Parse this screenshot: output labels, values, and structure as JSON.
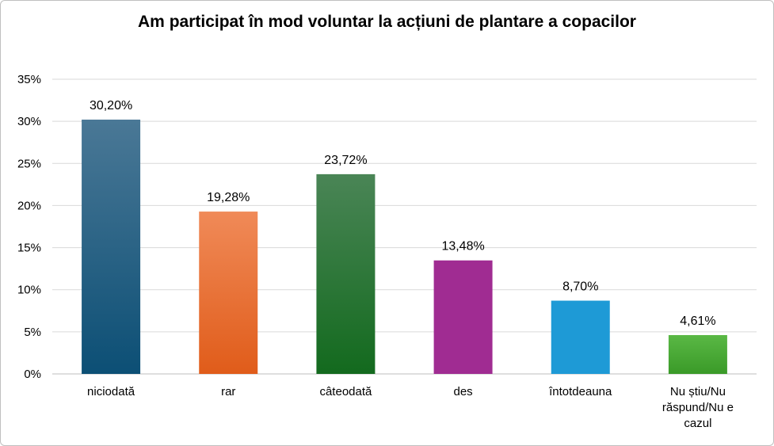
{
  "chart_data": {
    "type": "bar",
    "title": "Am participat în mod voluntar la acțiuni de plantare a copacilor",
    "xlabel": "",
    "ylabel": "",
    "ylim": [
      0,
      35
    ],
    "ytick_step": 5,
    "ytick_labels": [
      "0%",
      "5%",
      "10%",
      "15%",
      "20%",
      "25%",
      "30%",
      "35%"
    ],
    "grid": true,
    "legend": "none",
    "categories": [
      [
        "niciodată"
      ],
      [
        "rar"
      ],
      [
        "câteodată"
      ],
      [
        "des"
      ],
      [
        "întotdeauna"
      ],
      [
        "Nu știu/Nu",
        "răspund/Nu e",
        "cazul"
      ]
    ],
    "values": [
      30.2,
      19.28,
      23.72,
      13.48,
      8.7,
      4.61
    ],
    "value_labels": [
      "30,20%",
      "19,28%",
      "23,72%",
      "13,48%",
      "8,70%",
      "4,61%"
    ],
    "colors": [
      [
        "#4a7896",
        "#0c4f75"
      ],
      [
        "#f08a58",
        "#e05c1a"
      ],
      [
        "#4a8556",
        "#136a1e"
      ],
      [
        "#a02c92",
        "#a02c92"
      ],
      [
        "#1e9ad6",
        "#1e9ad6"
      ],
      [
        "#5ab845",
        "#3a9a28"
      ]
    ]
  }
}
